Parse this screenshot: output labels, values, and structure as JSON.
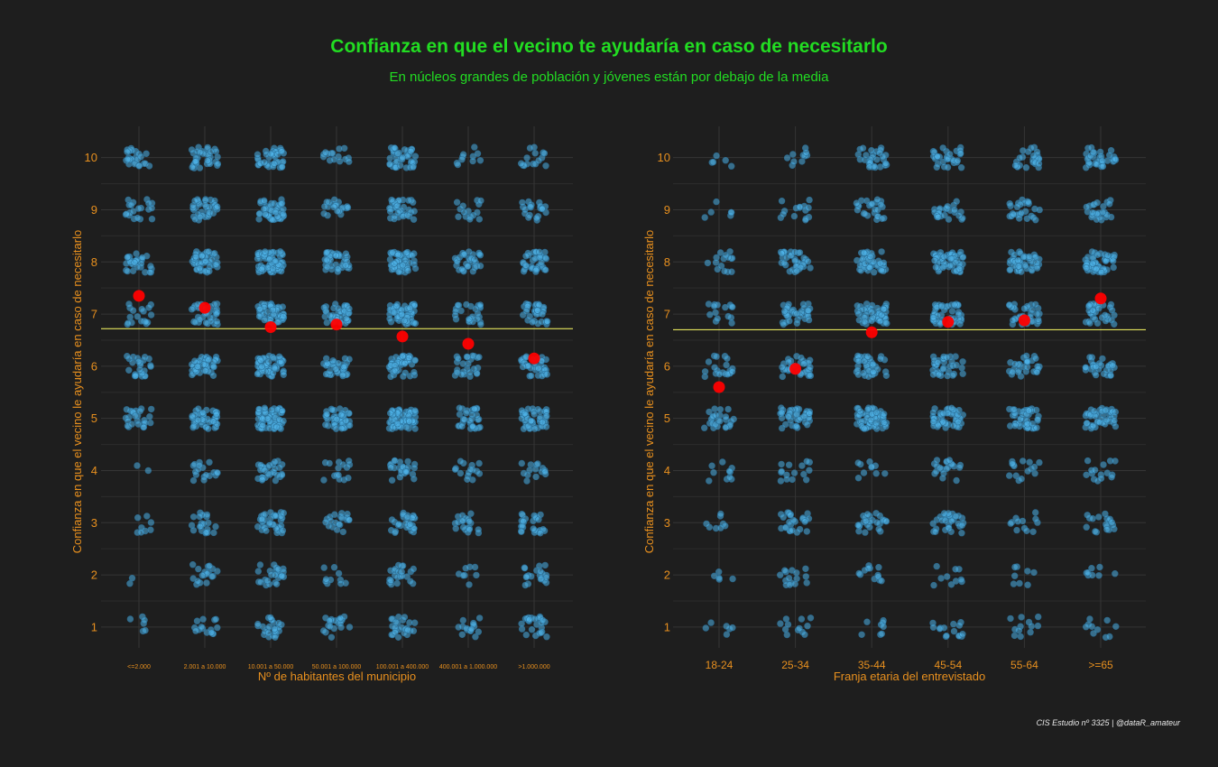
{
  "title": "Confianza en que el vecino te ayudaría en caso de necesitarlo",
  "subtitle": "En núcleos grandes de población y jóvenes están por debajo de la media",
  "caption": "CIS Estudio nº 3325 | @dataR_amateur",
  "colors": {
    "background": "#1e1e1e",
    "points": "#4fb3e8",
    "mean_points": "#ff0000",
    "overall_mean_line": "#ffff66",
    "text_title": "#22dd22",
    "axis_text": "#e8901e",
    "grid": "#333333"
  },
  "chart_data": [
    {
      "type": "scatter",
      "jitter": true,
      "xlabel": "Nº de habitantes del municipio",
      "ylabel": "Confianza en que el vecino le ayudaría en caso de necesitarlo",
      "categories": [
        "<=2.000",
        "2.001 a 10.000",
        "10.001 a 50.000",
        "50.001 a 100.000",
        "100.001 a 400.000",
        "400.001 a 1.000.000",
        ">1.000.000"
      ],
      "yticks": [
        1,
        2,
        3,
        4,
        5,
        6,
        7,
        8,
        9,
        10
      ],
      "ylim": [
        0.8,
        10.3
      ],
      "grid": true,
      "overall_mean": 6.72,
      "category_means": [
        7.35,
        7.12,
        6.75,
        6.8,
        6.57,
        6.43,
        6.15
      ],
      "counts": [
        [
          6,
          15,
          25,
          20,
          25,
          15,
          25
        ],
        [
          2,
          18,
          25,
          10,
          22,
          8,
          20
        ],
        [
          8,
          20,
          35,
          20,
          30,
          20,
          25
        ],
        [
          2,
          18,
          30,
          15,
          25,
          15,
          15
        ],
        [
          25,
          45,
          70,
          45,
          80,
          30,
          45
        ],
        [
          25,
          45,
          60,
          35,
          50,
          25,
          35
        ],
        [
          18,
          35,
          55,
          45,
          60,
          25,
          35
        ],
        [
          30,
          45,
          70,
          40,
          55,
          30,
          35
        ],
        [
          20,
          35,
          45,
          20,
          35,
          15,
          20
        ],
        [
          25,
          35,
          40,
          15,
          40,
          10,
          15
        ]
      ]
    },
    {
      "type": "scatter",
      "jitter": true,
      "xlabel": "Franja etaria del entrevistado",
      "ylabel": "Confianza en que el vecino le ayudaría en caso de necesitarlo",
      "categories": [
        "18-24",
        "25-34",
        "35-44",
        "45-54",
        "55-64",
        ">=65"
      ],
      "yticks": [
        1,
        2,
        3,
        4,
        5,
        6,
        7,
        8,
        9,
        10
      ],
      "ylim": [
        0.8,
        10.3
      ],
      "grid": true,
      "overall_mean": 6.7,
      "category_means": [
        5.6,
        5.95,
        6.65,
        6.85,
        6.88,
        7.3
      ],
      "counts": [
        [
          6,
          12,
          8,
          15,
          12,
          10
        ],
        [
          5,
          15,
          12,
          10,
          8,
          8
        ],
        [
          8,
          25,
          25,
          30,
          12,
          18
        ],
        [
          10,
          15,
          10,
          20,
          15,
          15
        ],
        [
          25,
          40,
          60,
          50,
          45,
          45
        ],
        [
          20,
          35,
          40,
          35,
          30,
          30
        ],
        [
          15,
          35,
          50,
          50,
          35,
          35
        ],
        [
          15,
          35,
          45,
          55,
          45,
          60
        ],
        [
          6,
          15,
          25,
          25,
          25,
          25
        ],
        [
          5,
          10,
          30,
          30,
          25,
          35
        ]
      ]
    }
  ]
}
